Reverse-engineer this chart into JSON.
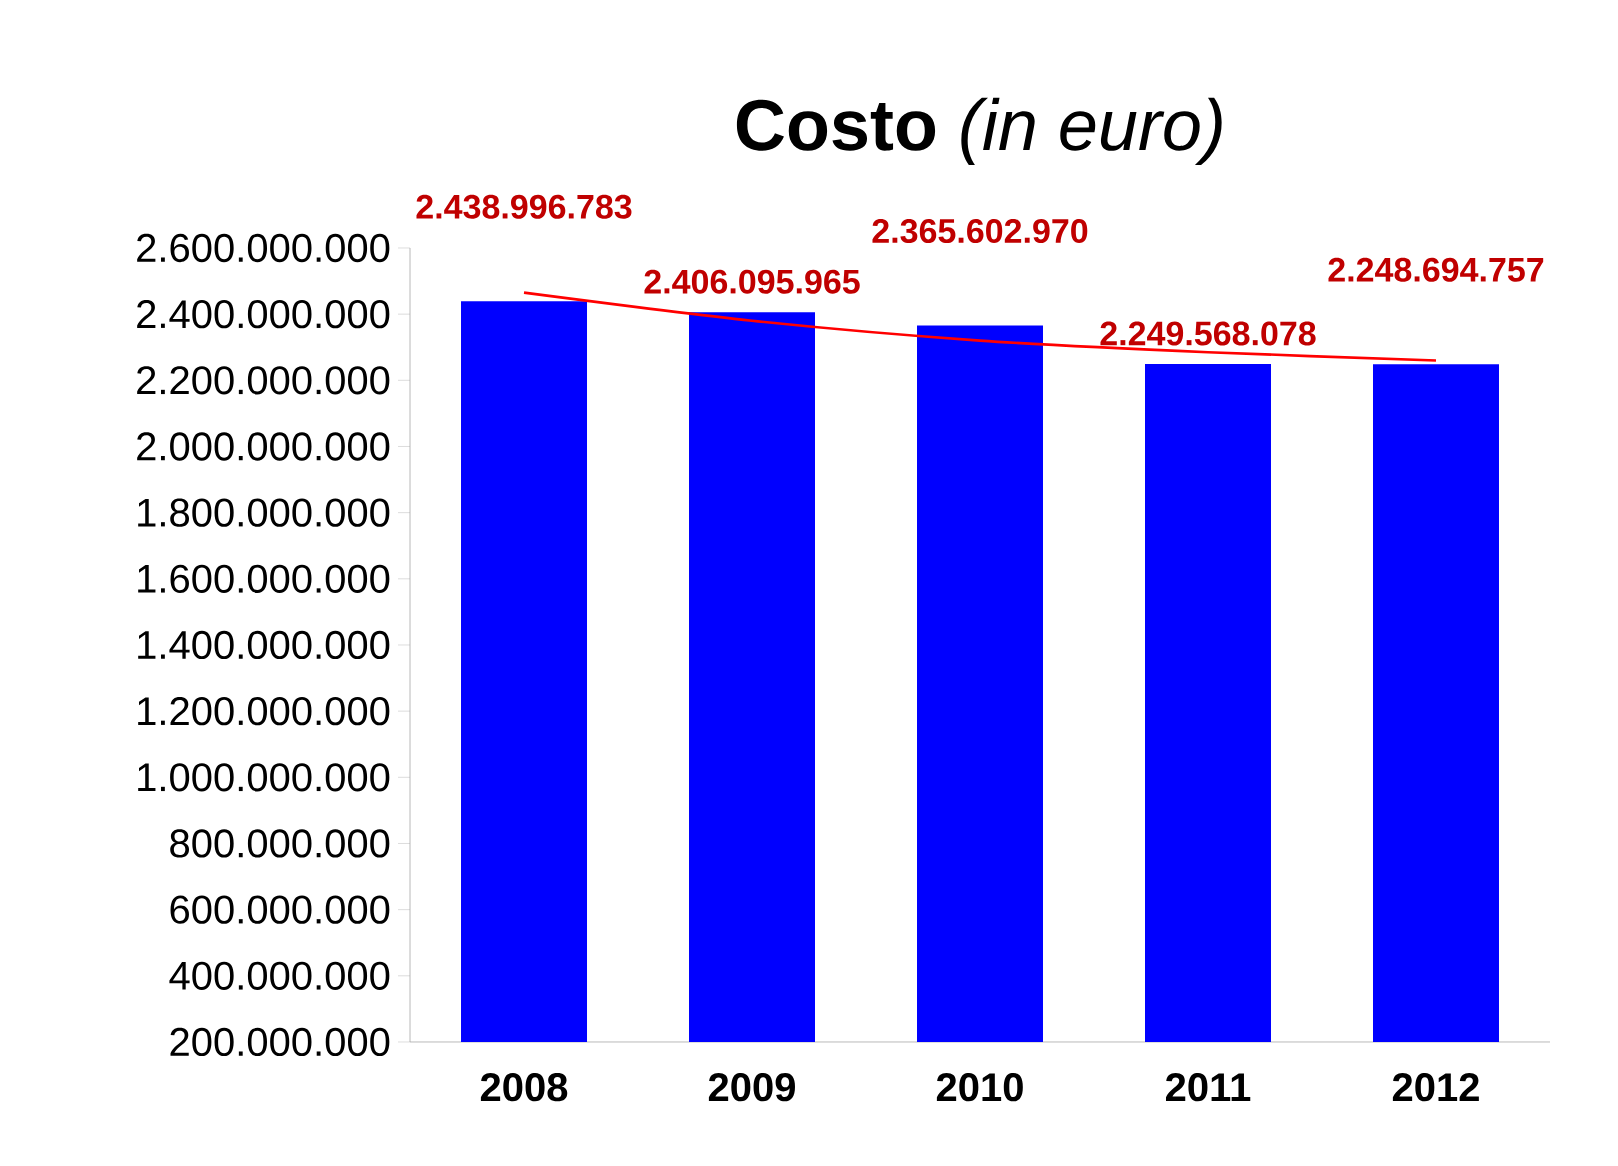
{
  "chart_data": {
    "type": "bar",
    "title": "**Costo** *(in euro)*",
    "categories": [
      "2008",
      "2009",
      "2010",
      "2011",
      "2012"
    ],
    "series": [
      {
        "color": "#0000ff",
        "values": [
          2438996783,
          2406095965,
          2365602970,
          2249568078,
          2248694757
        ],
        "value_labels": [
          "2.438.996.783",
          "2.406.095.965",
          "2.365.602.970",
          "2.249.568.078",
          "2.248.694.757"
        ]
      },
      {
        "type": "line",
        "color": "#ff0000",
        "values": [
          2465000000,
          2380000000,
          2320000000,
          2285000000,
          2260000000
        ]
      }
    ],
    "ylim": [
      200000000,
      2600000000
    ],
    "yticks": [
      {
        "value": 200000000,
        "label": "200.000.000"
      },
      {
        "value": 400000000,
        "label": "400.000.000"
      },
      {
        "value": 600000000,
        "label": "600.000.000"
      },
      {
        "value": 800000000,
        "label": "800.000.000"
      },
      {
        "value": 1000000000,
        "label": "1.000.000.000"
      },
      {
        "value": 1200000000,
        "label": "1.200.000.000"
      },
      {
        "value": 1400000000,
        "label": "1.400.000.000"
      },
      {
        "value": 1600000000,
        "label": "1.600.000.000"
      },
      {
        "value": 1800000000,
        "label": "1.800.000.000"
      },
      {
        "value": 2000000000,
        "label": "2.000.000.000"
      },
      {
        "value": 2200000000,
        "label": "2.200.000.000"
      },
      {
        "value": 2400000000,
        "label": "2.400.000.000"
      },
      {
        "value": 2600000000,
        "label": "2.600.000.000"
      }
    ],
    "grid": false
  }
}
